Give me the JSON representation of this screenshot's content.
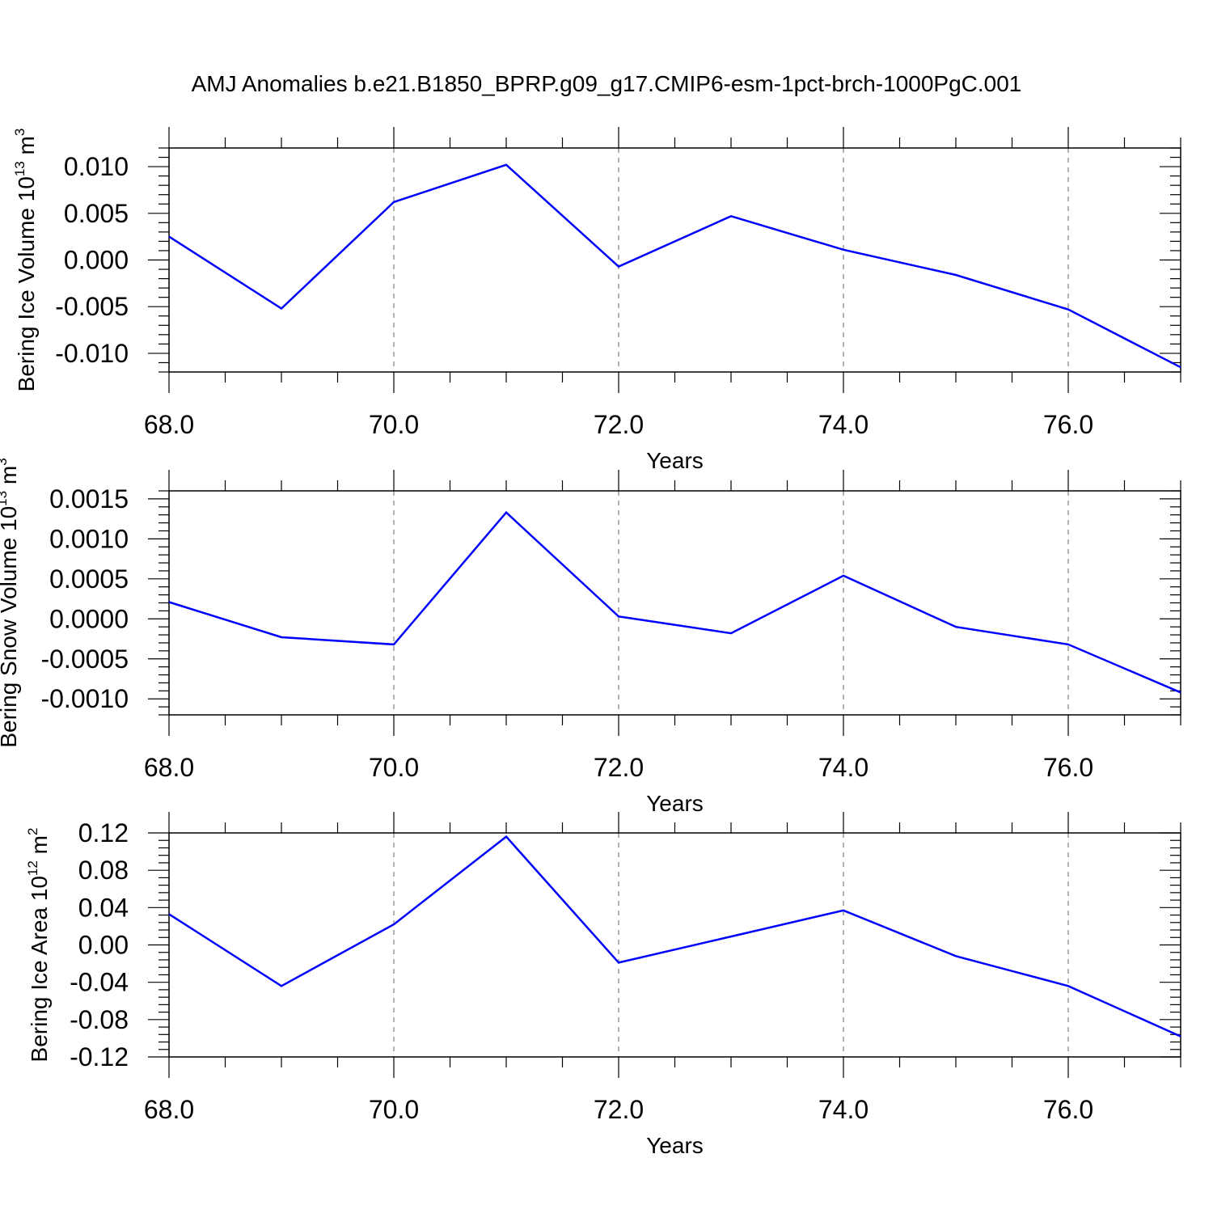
{
  "title": "AMJ Anomalies b.e21.B1850_BPRP.g09_g17.CMIP6-esm-1pct-brch-1000PgC.001",
  "chart_data": [
    {
      "type": "line",
      "xlabel": "Years",
      "ylabel": {
        "base": "Bering Ice Volume 10",
        "exp1": "13",
        "unit": " m",
        "exp2": "3"
      },
      "xlim": [
        68,
        77
      ],
      "ylim": [
        -0.012,
        0.012
      ],
      "xticks": [
        68,
        70,
        72,
        74,
        76
      ],
      "xtick_labels": [
        "68.0",
        "70.0",
        "72.0",
        "74.0",
        "76.0"
      ],
      "yticks": [
        0.01,
        0.005,
        0.0,
        -0.005,
        -0.01
      ],
      "ytick_labels": [
        "0.010",
        "0.005",
        "0.000",
        "-0.005",
        "-0.010"
      ],
      "ygrid_dashed_at_major_x": true,
      "series": [
        {
          "color": "#0000ff",
          "x": [
            68,
            69,
            70,
            71,
            72,
            73,
            74,
            75,
            76,
            77
          ],
          "y": [
            0.0025,
            -0.0052,
            0.0062,
            0.0102,
            -0.0007,
            0.0047,
            0.0011,
            -0.0016,
            -0.0053,
            -0.0115
          ]
        }
      ]
    },
    {
      "type": "line",
      "xlabel": "Years",
      "ylabel": {
        "base": "Bering Snow Volume 10",
        "exp1": "13",
        "unit": " m",
        "exp2": "3"
      },
      "xlim": [
        68,
        77
      ],
      "ylim": [
        -0.0012,
        0.0016
      ],
      "xticks": [
        68,
        70,
        72,
        74,
        76
      ],
      "xtick_labels": [
        "68.0",
        "70.0",
        "72.0",
        "74.0",
        "76.0"
      ],
      "yticks": [
        0.0015,
        0.001,
        0.0005,
        0.0,
        -0.0005,
        -0.001
      ],
      "ytick_labels": [
        "0.0015",
        "0.0010",
        "0.0005",
        "0.0000",
        "-0.0005",
        "-0.0010"
      ],
      "series": [
        {
          "color": "#0000ff",
          "x": [
            68,
            69,
            70,
            71,
            72,
            73,
            74,
            75,
            76,
            77
          ],
          "y": [
            0.00021,
            -0.00023,
            -0.00032,
            0.00133,
            3e-05,
            -0.00018,
            0.00054,
            -0.0001,
            -0.00032,
            -0.00092
          ]
        }
      ]
    },
    {
      "type": "line",
      "xlabel": "Years",
      "ylabel": {
        "base": "Bering Ice Area 10",
        "exp1": "12",
        "unit": " m",
        "exp2": "2"
      },
      "xlim": [
        68,
        77
      ],
      "ylim": [
        -0.12,
        0.12
      ],
      "xticks": [
        68,
        70,
        72,
        74,
        76
      ],
      "xtick_labels": [
        "68.0",
        "70.0",
        "72.0",
        "74.0",
        "76.0"
      ],
      "yticks": [
        0.12,
        0.08,
        0.04,
        0.0,
        -0.04,
        -0.08,
        -0.12
      ],
      "ytick_labels": [
        "0.12",
        "0.08",
        "0.04",
        "0.00",
        "-0.04",
        "-0.08",
        "-0.12"
      ],
      "series": [
        {
          "color": "#0000ff",
          "x": [
            68,
            69,
            70,
            71,
            72,
            73,
            74,
            75,
            76,
            77
          ],
          "y": [
            0.033,
            -0.044,
            0.022,
            0.116,
            -0.019,
            0.009,
            0.037,
            -0.012,
            -0.044,
            -0.098
          ]
        }
      ]
    }
  ]
}
